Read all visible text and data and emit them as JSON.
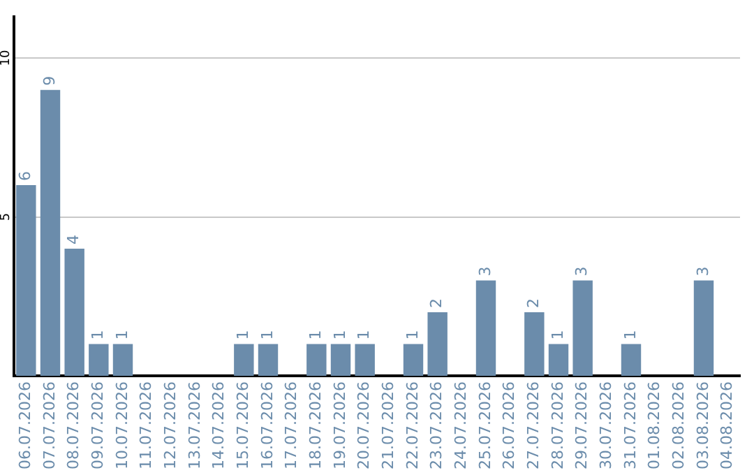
{
  "chart_data": {
    "type": "bar",
    "categories": [
      "06.07.2026",
      "07.07.2026",
      "08.07.2026",
      "09.07.2026",
      "10.07.2026",
      "11.07.2026",
      "12.07.2026",
      "13.07.2026",
      "14.07.2026",
      "15.07.2026",
      "16.07.2026",
      "17.07.2026",
      "18.07.2026",
      "19.07.2026",
      "20.07.2026",
      "21.07.2026",
      "22.07.2026",
      "23.07.2026",
      "24.07.2026",
      "25.07.2026",
      "26.07.2026",
      "27.07.2026",
      "28.07.2026",
      "29.07.2026",
      "30.07.2026",
      "31.07.2026",
      "01.08.2026",
      "02.08.2026",
      "03.08.2026",
      "04.08.2026"
    ],
    "values": [
      6,
      9,
      4,
      1,
      1,
      0,
      0,
      0,
      0,
      1,
      1,
      0,
      1,
      1,
      1,
      0,
      1,
      2,
      0,
      3,
      0,
      2,
      1,
      3,
      0,
      1,
      0,
      0,
      3,
      0
    ],
    "value_labels": [
      "6",
      "9",
      "4",
      "1",
      "1",
      null,
      null,
      null,
      null,
      "1",
      "1",
      null,
      "1",
      "1",
      "1",
      null,
      "1",
      "2",
      null,
      "3",
      null,
      "2",
      "1",
      "3",
      null,
      "1",
      null,
      null,
      "3",
      null
    ],
    "color": "#6b8cab",
    "ylim": [
      0,
      11.3
    ],
    "yticks": [
      5,
      10
    ],
    "grid": "y",
    "legend": false
  }
}
